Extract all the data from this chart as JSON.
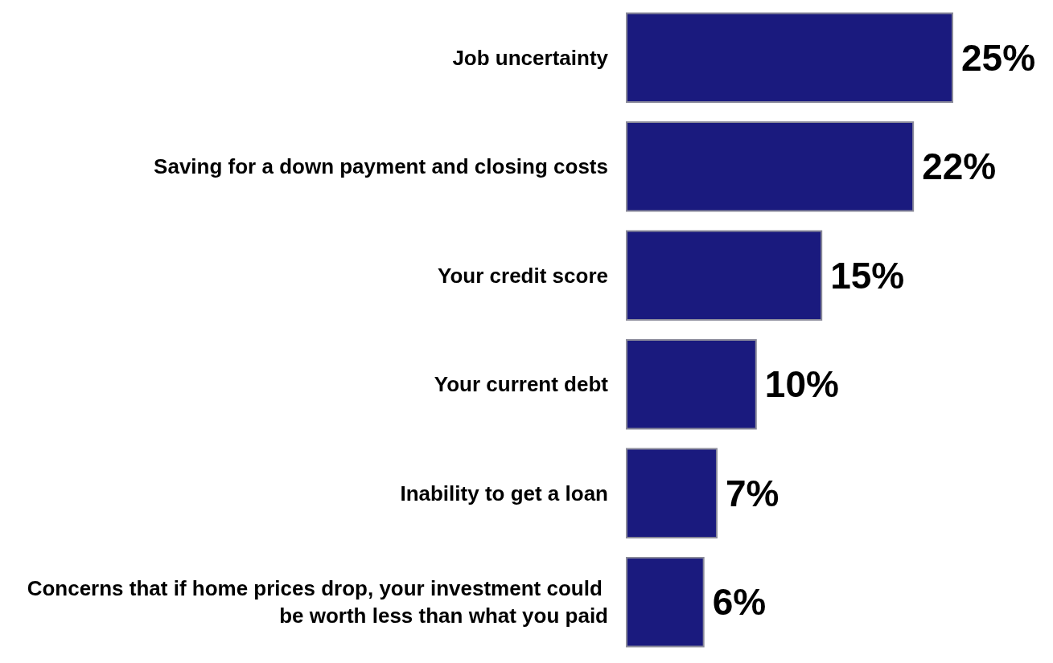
{
  "chart_data": {
    "type": "bar",
    "orientation": "horizontal",
    "categories": [
      "Job uncertainty",
      "Saving for a down payment and closing costs",
      "Your credit score",
      "Your current debt",
      "Inability to get a loan",
      "Concerns that if home prices drop, your investment could be worth less than what you paid"
    ],
    "values": [
      25,
      22,
      15,
      10,
      7,
      6
    ],
    "value_labels": [
      "25%",
      "22%",
      "15%",
      "10%",
      "7%",
      "6%"
    ],
    "color": "#1a1a7e"
  }
}
